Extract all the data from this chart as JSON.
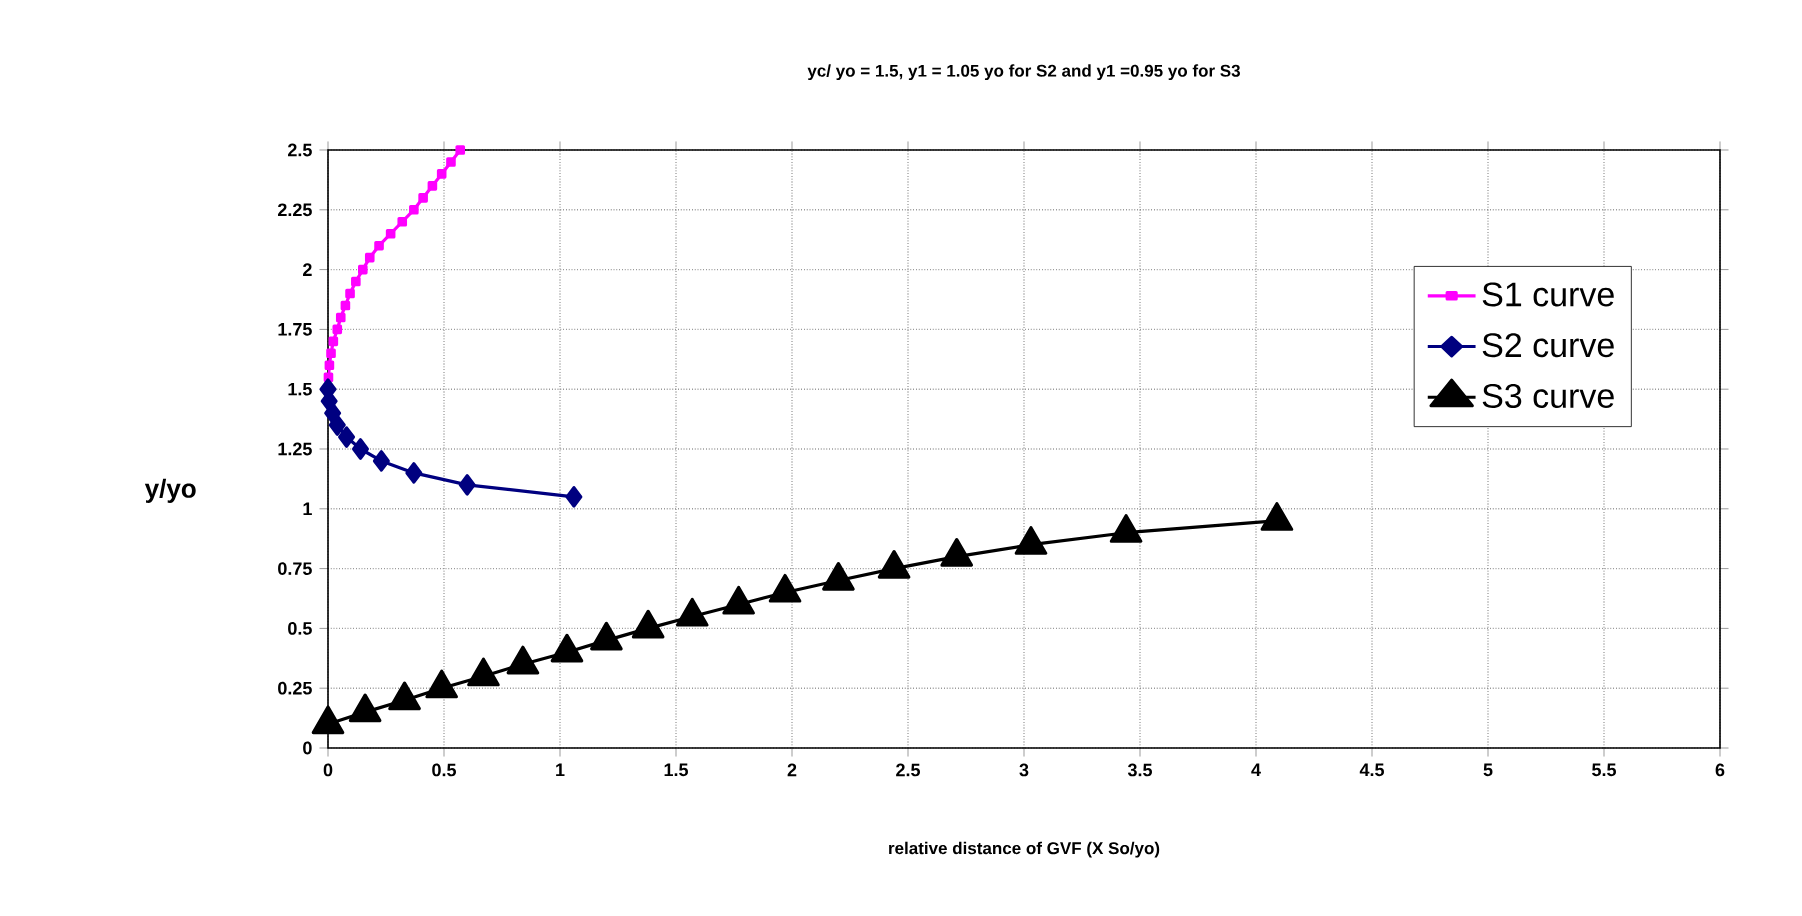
{
  "chart_data": {
    "type": "line",
    "title": "yc/ yo = 1.5, y1 = 1.05 yo for S2 and y1 =0.95 yo for S3",
    "xlabel": "relative distance of GVF (X So/yo)",
    "ylabel": "y/yo",
    "xlim": [
      0,
      6
    ],
    "xticks": [
      0,
      0.5,
      1,
      1.5,
      2,
      2.5,
      3,
      3.5,
      4,
      4.5,
      5,
      5.5,
      6
    ],
    "ylim": [
      0,
      2.5
    ],
    "yticks": [
      0,
      0.25,
      0.5,
      0.75,
      1,
      1.25,
      1.5,
      1.75,
      2,
      2.25,
      2.5
    ],
    "grid": true,
    "legend": "right",
    "series": [
      {
        "name": "S1 curve",
        "color": "#ff00ff",
        "marker": "square",
        "x": [
          0,
          0.002,
          0.006,
          0.013,
          0.023,
          0.04,
          0.055,
          0.075,
          0.095,
          0.12,
          0.15,
          0.18,
          0.22,
          0.27,
          0.32,
          0.37,
          0.41,
          0.45,
          0.49,
          0.53,
          0.57
        ],
        "values": [
          1.5,
          1.55,
          1.6,
          1.65,
          1.7,
          1.75,
          1.8,
          1.85,
          1.9,
          1.95,
          2.0,
          2.05,
          2.1,
          2.15,
          2.2,
          2.25,
          2.3,
          2.35,
          2.4,
          2.45,
          2.5
        ]
      },
      {
        "name": "S2 curve",
        "color": "#000080",
        "marker": "diamond",
        "x": [
          0,
          0.005,
          0.02,
          0.04,
          0.08,
          0.14,
          0.23,
          0.37,
          0.6,
          1.06
        ],
        "values": [
          1.5,
          1.45,
          1.4,
          1.35,
          1.3,
          1.25,
          1.2,
          1.15,
          1.1,
          1.05
        ]
      },
      {
        "name": "S3 curve",
        "color": "#000000",
        "marker": "triangle",
        "x": [
          0,
          0.16,
          0.33,
          0.49,
          0.67,
          0.84,
          1.03,
          1.2,
          1.38,
          1.57,
          1.77,
          1.97,
          2.2,
          2.44,
          2.71,
          3.03,
          3.44,
          4.09
        ],
        "values": [
          0.1,
          0.15,
          0.2,
          0.25,
          0.3,
          0.35,
          0.4,
          0.45,
          0.5,
          0.55,
          0.6,
          0.65,
          0.7,
          0.75,
          0.8,
          0.85,
          0.9,
          0.95
        ]
      }
    ]
  }
}
